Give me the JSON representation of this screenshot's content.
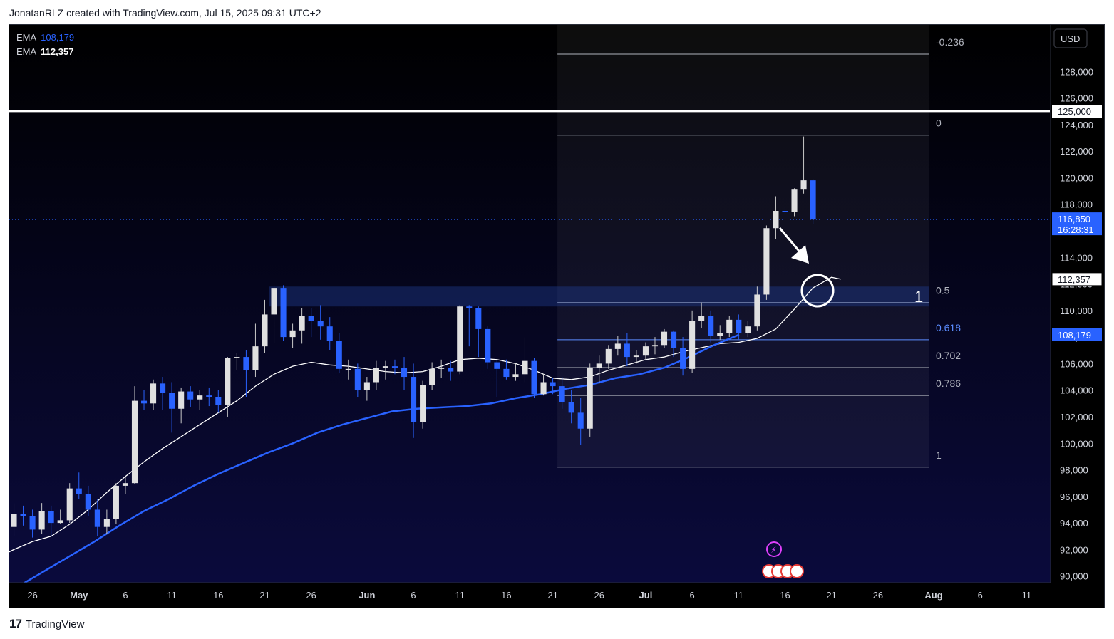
{
  "header": {
    "text": "JonatanRLZ created with TradingView.com, Jul 15, 2025 09:31 UTC+2"
  },
  "footer": {
    "brand": "TradingView"
  },
  "legend": [
    {
      "label": "EMA",
      "value": "108,179",
      "color": "#2962ff"
    },
    {
      "label": "EMA",
      "value": "112,357",
      "color": "#ffffff"
    }
  ],
  "colors": {
    "bg_top": "#000000",
    "bg_bottom": "#0b0b3f",
    "up_candle": "#e0e0e0",
    "down_candle": "#2962ff",
    "ema_fast": "#ffffff",
    "ema_slow": "#2962ff",
    "zone": "#1e3a8a"
  },
  "chart_data": {
    "type": "candlestick",
    "symbol_currency": "USD",
    "ylim": [
      89500,
      131500
    ],
    "y_ticks": [
      "90,000",
      "92,000",
      "94,000",
      "96,000",
      "98,000",
      "100,000",
      "102,000",
      "104,000",
      "106,000",
      "108,000",
      "110,000",
      "112,000",
      "114,000",
      "116,000",
      "118,000",
      "120,000",
      "122,000",
      "124,000",
      "126,000",
      "128,000"
    ],
    "x_ticks": [
      {
        "label": "26",
        "date": "2025-04-26"
      },
      {
        "label": "May",
        "date": "2025-05-01"
      },
      {
        "label": "6",
        "date": "2025-05-06"
      },
      {
        "label": "11",
        "date": "2025-05-11"
      },
      {
        "label": "16",
        "date": "2025-05-16"
      },
      {
        "label": "21",
        "date": "2025-05-21"
      },
      {
        "label": "26",
        "date": "2025-05-26"
      },
      {
        "label": "Jun",
        "date": "2025-06-01"
      },
      {
        "label": "6",
        "date": "2025-06-06"
      },
      {
        "label": "11",
        "date": "2025-06-11"
      },
      {
        "label": "16",
        "date": "2025-06-16"
      },
      {
        "label": "21",
        "date": "2025-06-21"
      },
      {
        "label": "26",
        "date": "2025-06-26"
      },
      {
        "label": "Jul",
        "date": "2025-07-01"
      },
      {
        "label": "6",
        "date": "2025-07-06"
      },
      {
        "label": "11",
        "date": "2025-07-11"
      },
      {
        "label": "16",
        "date": "2025-07-16"
      },
      {
        "label": "21",
        "date": "2025-07-21"
      },
      {
        "label": "26",
        "date": "2025-07-26"
      },
      {
        "label": "Aug",
        "date": "2025-08-01"
      },
      {
        "label": "6",
        "date": "2025-08-06"
      },
      {
        "label": "11",
        "date": "2025-08-11"
      }
    ],
    "x_range": [
      "2025-04-24",
      "2025-08-14"
    ],
    "candles_start_date": "2025-04-24",
    "candles": [
      [
        93700,
        94700,
        93000,
        95500
      ],
      [
        94700,
        94500,
        93800,
        95300
      ],
      [
        94500,
        93500,
        92900,
        95000
      ],
      [
        93500,
        94900,
        93200,
        95500
      ],
      [
        94900,
        94000,
        93000,
        95300
      ],
      [
        94000,
        94200,
        93900,
        95000
      ],
      [
        94200,
        96600,
        94000,
        97000
      ],
      [
        96600,
        96200,
        95800,
        97800
      ],
      [
        96200,
        95000,
        94500,
        96800
      ],
      [
        95000,
        93700,
        93000,
        95800
      ],
      [
        93700,
        94300,
        93200,
        95000
      ],
      [
        94300,
        96800,
        93900,
        97000
      ],
      [
        96800,
        97000,
        96200,
        97500
      ],
      [
        97000,
        103200,
        96900,
        104300
      ],
      [
        103200,
        103000,
        102500,
        104000
      ],
      [
        103000,
        104500,
        102500,
        104800
      ],
      [
        104500,
        103800,
        102500,
        105000
      ],
      [
        103800,
        102600,
        100800,
        104600
      ],
      [
        102600,
        103900,
        101500,
        104200
      ],
      [
        103900,
        103300,
        102700,
        104300
      ],
      [
        103300,
        103600,
        102500,
        104000
      ],
      [
        103600,
        103500,
        102800,
        104200
      ],
      [
        103500,
        102900,
        102300,
        104000
      ],
      [
        102900,
        106400,
        102000,
        106500
      ],
      [
        106400,
        106500,
        105500,
        106800
      ],
      [
        106500,
        105500,
        103500,
        107000
      ],
      [
        105500,
        107300,
        105000,
        109000
      ],
      [
        107300,
        109700,
        106800,
        110800
      ],
      [
        109700,
        111700,
        107500,
        111900
      ],
      [
        111700,
        108000,
        107700,
        111900
      ],
      [
        108000,
        108500,
        107200,
        109000
      ],
      [
        108500,
        109600,
        107500,
        110200
      ],
      [
        109600,
        109200,
        108000,
        110200
      ],
      [
        109200,
        108800,
        107800,
        110400
      ],
      [
        108800,
        107700,
        107000,
        109500
      ],
      [
        107700,
        105600,
        105300,
        108300
      ],
      [
        105600,
        105600,
        104800,
        106300
      ],
      [
        105600,
        104000,
        103500,
        106000
      ],
      [
        104000,
        104600,
        103200,
        105000
      ],
      [
        104600,
        105700,
        104000,
        106200
      ],
      [
        105700,
        105800,
        104800,
        106200
      ],
      [
        105800,
        105700,
        105200,
        106300
      ],
      [
        105700,
        105000,
        104000,
        106500
      ],
      [
        105000,
        101600,
        100400,
        106000
      ],
      [
        101600,
        104400,
        101100,
        104700
      ],
      [
        104400,
        105600,
        104000,
        106100
      ],
      [
        105600,
        105700,
        104900,
        106300
      ],
      [
        105700,
        105400,
        104700,
        106200
      ],
      [
        105400,
        110300,
        105200,
        110400
      ],
      [
        110300,
        110200,
        107300,
        110400
      ],
      [
        110200,
        108600,
        106500,
        110300
      ],
      [
        108600,
        106100,
        105600,
        108800
      ],
      [
        106100,
        105600,
        103500,
        106300
      ],
      [
        105600,
        105000,
        104800,
        106300
      ],
      [
        105000,
        105200,
        104700,
        106000
      ],
      [
        105200,
        106200,
        104600,
        108000
      ],
      [
        106200,
        103700,
        103400,
        106400
      ],
      [
        103700,
        104600,
        103600,
        105200
      ],
      [
        104600,
        104300,
        103700,
        104900
      ],
      [
        104300,
        103100,
        102600,
        105000
      ],
      [
        103100,
        102300,
        101500,
        104000
      ],
      [
        102300,
        101100,
        99900,
        103400
      ],
      [
        101100,
        105700,
        100500,
        106000
      ],
      [
        105700,
        106000,
        104500,
        106600
      ],
      [
        106000,
        107100,
        105600,
        107400
      ],
      [
        107100,
        107500,
        106600,
        108100
      ],
      [
        107500,
        106500,
        105800,
        108300
      ],
      [
        106500,
        106600,
        106000,
        107000
      ],
      [
        106600,
        107300,
        106300,
        107600
      ],
      [
        107300,
        107400,
        106700,
        108000
      ],
      [
        107400,
        108400,
        107200,
        108600
      ],
      [
        108400,
        107200,
        106500,
        108500
      ],
      [
        107200,
        105600,
        105100,
        108000
      ],
      [
        105600,
        109200,
        105300,
        110000
      ],
      [
        109200,
        109600,
        108700,
        110600
      ],
      [
        109600,
        108100,
        107600,
        110000
      ],
      [
        108100,
        108300,
        107800,
        108900
      ],
      [
        108300,
        109300,
        108000,
        109600
      ],
      [
        109300,
        108300,
        107800,
        109700
      ],
      [
        108300,
        108800,
        108000,
        109200
      ],
      [
        108800,
        111200,
        108500,
        111800
      ],
      [
        111200,
        116200,
        110800,
        116400
      ],
      [
        116200,
        117500,
        115400,
        118600
      ],
      [
        117500,
        117400,
        117200,
        117800
      ],
      [
        117400,
        119100,
        117100,
        119200
      ],
      [
        119100,
        119800,
        118800,
        123100
      ],
      [
        119800,
        116850,
        116500,
        119900
      ]
    ],
    "ema_fast": {
      "name": "EMA",
      "last": 112357,
      "values": [
        [
          0,
          88000
        ],
        [
          2,
          88800
        ],
        [
          4,
          89500
        ],
        [
          6,
          90200
        ],
        [
          8,
          91300
        ],
        [
          10,
          92000
        ],
        [
          12,
          92600
        ],
        [
          14,
          93000
        ],
        [
          16,
          93900
        ],
        [
          18,
          95000
        ],
        [
          20,
          96300
        ],
        [
          22,
          97500
        ],
        [
          24,
          98600
        ],
        [
          26,
          99600
        ],
        [
          28,
          100500
        ],
        [
          30,
          101400
        ],
        [
          32,
          102300
        ],
        [
          34,
          103200
        ],
        [
          36,
          104300
        ],
        [
          38,
          105200
        ],
        [
          40,
          105800
        ],
        [
          42,
          106100
        ],
        [
          44,
          105900
        ],
        [
          46,
          105800
        ],
        [
          48,
          105600
        ],
        [
          50,
          105400
        ],
        [
          52,
          105300
        ],
        [
          54,
          105400
        ],
        [
          56,
          105800
        ],
        [
          58,
          106300
        ],
        [
          60,
          106400
        ],
        [
          62,
          106300
        ],
        [
          64,
          106000
        ],
        [
          66,
          105500
        ],
        [
          68,
          104900
        ],
        [
          70,
          104800
        ],
        [
          72,
          105000
        ],
        [
          74,
          105500
        ],
        [
          76,
          105900
        ],
        [
          78,
          106300
        ],
        [
          80,
          106500
        ],
        [
          82,
          106900
        ],
        [
          84,
          107200
        ],
        [
          86,
          107500
        ],
        [
          88,
          107600
        ],
        [
          90,
          107900
        ],
        [
          92,
          108600
        ],
        [
          94,
          110100
        ],
        [
          96,
          111700
        ],
        [
          98,
          112500
        ],
        [
          99,
          112357
        ]
      ]
    },
    "ema_slow": {
      "name": "EMA",
      "last": 108179,
      "values": [
        [
          0,
          85500
        ],
        [
          4,
          86300
        ],
        [
          8,
          87000
        ],
        [
          12,
          88100
        ],
        [
          16,
          89300
        ],
        [
          20,
          90400
        ],
        [
          24,
          91500
        ],
        [
          28,
          92600
        ],
        [
          32,
          93800
        ],
        [
          36,
          94900
        ],
        [
          40,
          95800
        ],
        [
          44,
          96800
        ],
        [
          48,
          97700
        ],
        [
          52,
          98500
        ],
        [
          56,
          99300
        ],
        [
          60,
          100000
        ],
        [
          64,
          100800
        ],
        [
          68,
          101400
        ],
        [
          72,
          101900
        ],
        [
          76,
          102400
        ],
        [
          80,
          102600
        ],
        [
          84,
          102700
        ],
        [
          88,
          102800
        ],
        [
          92,
          103000
        ],
        [
          96,
          103400
        ],
        [
          100,
          103700
        ],
        [
          104,
          104100
        ],
        [
          108,
          104400
        ],
        [
          112,
          104900
        ],
        [
          116,
          105200
        ],
        [
          120,
          105700
        ],
        [
          124,
          106500
        ],
        [
          128,
          107400
        ],
        [
          132,
          108179
        ]
      ]
    },
    "current_price": "116,850",
    "countdown": "16:28:31",
    "horizontal_level": {
      "value": 125000,
      "label": "125,000"
    },
    "fib_levels": [
      {
        "label": "-0.236",
        "value": 129300
      },
      {
        "label": "0",
        "value": 123200
      },
      {
        "label": "0.5",
        "value": 110600
      },
      {
        "label": "0.618",
        "value": 107800
      },
      {
        "label": "0.702",
        "value": 105700
      },
      {
        "label": "0.786",
        "value": 103600
      },
      {
        "label": "1",
        "value": 98200
      }
    ],
    "zone": {
      "top": 111800,
      "bottom": 110300,
      "label": "1"
    },
    "annotations": [
      "arrow pointing down to target",
      "circle target near 111,000"
    ]
  }
}
